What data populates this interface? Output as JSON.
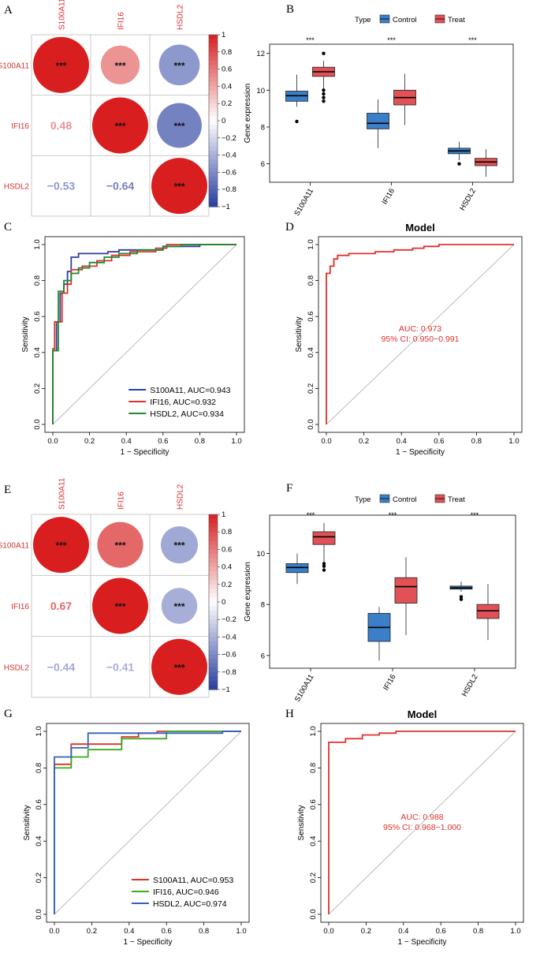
{
  "chart_data": [
    {
      "panel": "A",
      "type": "heatmap",
      "genes": [
        "S100A11",
        "IFI16",
        "HSDL2"
      ],
      "correlations": [
        [
          1,
          0.48,
          -0.53
        ],
        [
          0.48,
          1,
          -0.64
        ],
        [
          -0.53,
          -0.64,
          1
        ]
      ],
      "coef_labels": {
        "1_0": "0.48",
        "2_0": "−0.53",
        "2_1": "−0.64"
      },
      "significance": "***",
      "colorbar_ticks": [
        "1",
        "0.8",
        "0.6",
        "0.4",
        "0.2",
        "0",
        "−0.2",
        "−0.4",
        "−0.6",
        "−0.8",
        "−1"
      ],
      "colorbar_range": [
        -1,
        1
      ]
    },
    {
      "panel": "B",
      "type": "box",
      "legend_title": "Type",
      "legend": [
        "Control",
        "Treat"
      ],
      "colors": {
        "Control": "#3a7fc8",
        "Treat": "#e05256"
      },
      "ylabel": "Gene expression",
      "ylim": [
        5,
        12.5
      ],
      "yticks": [
        6,
        8,
        10,
        12
      ],
      "categories": [
        "S100A11",
        "IFI16",
        "HSDL2"
      ],
      "significance": [
        "***",
        "***",
        "***"
      ],
      "series": [
        {
          "name": "Control",
          "boxes": [
            {
              "low": 9.1,
              "q1": 9.4,
              "median": 9.7,
              "q3": 9.95,
              "high": 10.85,
              "outliers": [
                8.3
              ]
            },
            {
              "low": 6.85,
              "q1": 7.9,
              "median": 8.2,
              "q3": 8.75,
              "high": 9.5,
              "outliers": []
            },
            {
              "low": 6.2,
              "q1": 6.55,
              "median": 6.7,
              "q3": 6.85,
              "high": 7.2,
              "outliers": [
                6.0
              ]
            }
          ]
        },
        {
          "name": "Treat",
          "boxes": [
            {
              "low": 10.0,
              "q1": 10.75,
              "median": 11.0,
              "q3": 11.25,
              "high": 11.6,
              "outliers": [
                9.4,
                9.6,
                9.8,
                10.0,
                12.0
              ]
            },
            {
              "low": 8.1,
              "q1": 9.2,
              "median": 9.6,
              "q3": 10.0,
              "high": 10.9,
              "outliers": []
            },
            {
              "low": 5.3,
              "q1": 5.9,
              "median": 6.1,
              "q3": 6.3,
              "high": 6.8,
              "outliers": []
            }
          ]
        }
      ]
    },
    {
      "panel": "C",
      "type": "line",
      "xlabel": "1 − Specificity",
      "ylabel": "Sensitivity",
      "xlim": [
        0,
        1
      ],
      "ylim": [
        0,
        1
      ],
      "ticks": [
        "0.0",
        "0.2",
        "0.4",
        "0.6",
        "0.8",
        "1.0"
      ],
      "series": [
        {
          "name": "S100A11",
          "label": "S100A11, AUC=0.943",
          "color": "#2e3f9e",
          "points": [
            [
              0,
              0
            ],
            [
              0,
              0.41
            ],
            [
              0.02,
              0.41
            ],
            [
              0.02,
              0.57
            ],
            [
              0.04,
              0.57
            ],
            [
              0.04,
              0.73
            ],
            [
              0.06,
              0.73
            ],
            [
              0.06,
              0.78
            ],
            [
              0.08,
              0.78
            ],
            [
              0.08,
              0.85
            ],
            [
              0.1,
              0.85
            ],
            [
              0.1,
              0.93
            ],
            [
              0.14,
              0.93
            ],
            [
              0.14,
              0.95
            ],
            [
              0.3,
              0.95
            ],
            [
              0.3,
              0.96
            ],
            [
              0.36,
              0.96
            ],
            [
              0.36,
              0.97
            ],
            [
              0.6,
              0.97
            ],
            [
              0.6,
              0.99
            ],
            [
              0.8,
              0.99
            ],
            [
              0.8,
              1
            ],
            [
              1,
              1
            ]
          ]
        },
        {
          "name": "IFI16",
          "label": "IFI16, AUC=0.932",
          "color": "#e0302c",
          "points": [
            [
              0,
              0
            ],
            [
              0,
              0.42
            ],
            [
              0.01,
              0.42
            ],
            [
              0.01,
              0.57
            ],
            [
              0.05,
              0.57
            ],
            [
              0.05,
              0.73
            ],
            [
              0.08,
              0.73
            ],
            [
              0.08,
              0.78
            ],
            [
              0.1,
              0.78
            ],
            [
              0.1,
              0.86
            ],
            [
              0.16,
              0.86
            ],
            [
              0.16,
              0.88
            ],
            [
              0.24,
              0.88
            ],
            [
              0.24,
              0.91
            ],
            [
              0.32,
              0.91
            ],
            [
              0.32,
              0.94
            ],
            [
              0.42,
              0.94
            ],
            [
              0.42,
              0.96
            ],
            [
              0.56,
              0.96
            ],
            [
              0.56,
              0.98
            ],
            [
              0.62,
              0.98
            ],
            [
              0.62,
              1
            ],
            [
              1,
              1
            ]
          ]
        },
        {
          "name": "HSDL2",
          "label": "HSDL2, AUC=0.934",
          "color": "#1c8a2e",
          "points": [
            [
              0,
              0
            ],
            [
              0,
              0.41
            ],
            [
              0.03,
              0.41
            ],
            [
              0.03,
              0.74
            ],
            [
              0.06,
              0.74
            ],
            [
              0.06,
              0.8
            ],
            [
              0.1,
              0.8
            ],
            [
              0.1,
              0.84
            ],
            [
              0.14,
              0.84
            ],
            [
              0.14,
              0.87
            ],
            [
              0.2,
              0.87
            ],
            [
              0.2,
              0.9
            ],
            [
              0.28,
              0.9
            ],
            [
              0.28,
              0.93
            ],
            [
              0.36,
              0.93
            ],
            [
              0.36,
              0.95
            ],
            [
              0.46,
              0.95
            ],
            [
              0.46,
              0.97
            ],
            [
              0.6,
              0.97
            ],
            [
              0.6,
              0.99
            ],
            [
              0.7,
              0.99
            ],
            [
              0.7,
              1
            ],
            [
              1,
              1
            ]
          ]
        }
      ]
    },
    {
      "panel": "D",
      "type": "line",
      "title": "Model",
      "xlabel": "1 − Specificity",
      "ylabel": "Sensitivity",
      "xlim": [
        0,
        1
      ],
      "ylim": [
        0,
        1
      ],
      "ticks": [
        "0.0",
        "0.2",
        "0.4",
        "0.6",
        "0.8",
        "1.0"
      ],
      "auc": "AUC: 0.973",
      "ci": "95% CI: 0.950−0.991",
      "series": [
        {
          "name": "Model",
          "color": "#e0302c",
          "points": [
            [
              0,
              0
            ],
            [
              0,
              0.84
            ],
            [
              0.02,
              0.84
            ],
            [
              0.02,
              0.88
            ],
            [
              0.04,
              0.88
            ],
            [
              0.04,
              0.92
            ],
            [
              0.06,
              0.92
            ],
            [
              0.06,
              0.94
            ],
            [
              0.12,
              0.94
            ],
            [
              0.12,
              0.95
            ],
            [
              0.26,
              0.95
            ],
            [
              0.26,
              0.96
            ],
            [
              0.36,
              0.96
            ],
            [
              0.36,
              0.97
            ],
            [
              0.46,
              0.97
            ],
            [
              0.46,
              0.98
            ],
            [
              0.52,
              0.98
            ],
            [
              0.52,
              0.99
            ],
            [
              0.6,
              0.99
            ],
            [
              0.6,
              1
            ],
            [
              1,
              1
            ]
          ]
        }
      ]
    },
    {
      "panel": "E",
      "type": "heatmap",
      "genes": [
        "S100A11",
        "IFI16",
        "HSDL2"
      ],
      "correlations": [
        [
          1,
          0.67,
          -0.44
        ],
        [
          0.67,
          1,
          -0.41
        ],
        [
          -0.44,
          -0.41,
          1
        ]
      ],
      "coef_labels": {
        "1_0": "0.67",
        "2_0": "−0.44",
        "2_1": "−0.41"
      },
      "significance": "***",
      "colorbar_ticks": [
        "1",
        "0.8",
        "0.6",
        "0.4",
        "0.2",
        "0",
        "−0.2",
        "−0.4",
        "−0.6",
        "−0.8",
        "−1"
      ],
      "colorbar_range": [
        -1,
        1
      ]
    },
    {
      "panel": "F",
      "type": "box",
      "legend_title": "Type",
      "legend": [
        "Control",
        "Treat"
      ],
      "colors": {
        "Control": "#3a7fc8",
        "Treat": "#e05256"
      },
      "ylabel": "Gene expression",
      "ylim": [
        5.5,
        11.5
      ],
      "yticks": [
        6,
        8,
        10
      ],
      "categories": [
        "S100A11",
        "IFI16",
        "HSDL2"
      ],
      "significance": [
        "***",
        "***",
        "***"
      ],
      "series": [
        {
          "name": "Control",
          "boxes": [
            {
              "low": 8.8,
              "q1": 9.25,
              "median": 9.45,
              "q3": 9.6,
              "high": 10.0,
              "outliers": []
            },
            {
              "low": 5.8,
              "q1": 6.55,
              "median": 7.1,
              "q3": 7.65,
              "high": 7.9,
              "outliers": []
            },
            {
              "low": 8.5,
              "q1": 8.6,
              "median": 8.65,
              "q3": 8.72,
              "high": 8.9,
              "outliers": [
                8.2,
                8.3
              ]
            }
          ]
        },
        {
          "name": "Treat",
          "boxes": [
            {
              "low": 9.5,
              "q1": 10.35,
              "median": 10.65,
              "q3": 10.85,
              "high": 11.2,
              "outliers": [
                9.35,
                9.5,
                9.6
              ]
            },
            {
              "low": 6.8,
              "q1": 8.05,
              "median": 8.7,
              "q3": 9.05,
              "high": 9.85,
              "outliers": []
            },
            {
              "low": 6.6,
              "q1": 7.45,
              "median": 7.75,
              "q3": 8.0,
              "high": 8.8,
              "outliers": []
            }
          ]
        }
      ]
    },
    {
      "panel": "G",
      "type": "line",
      "xlabel": "1 − Specificity",
      "ylabel": "Sensitivity",
      "xlim": [
        0,
        1
      ],
      "ylim": [
        0,
        1
      ],
      "ticks": [
        "0.0",
        "0.2",
        "0.4",
        "0.6",
        "0.8",
        "1.0"
      ],
      "series": [
        {
          "name": "S100A11",
          "label": "S100A11, AUC=0.953",
          "color": "#e0302c",
          "points": [
            [
              0,
              0
            ],
            [
              0,
              0.82
            ],
            [
              0.09,
              0.82
            ],
            [
              0.09,
              0.93
            ],
            [
              0.36,
              0.93
            ],
            [
              0.36,
              0.97
            ],
            [
              0.45,
              0.97
            ],
            [
              0.45,
              0.99
            ],
            [
              0.55,
              0.99
            ],
            [
              0.55,
              1
            ],
            [
              1,
              1
            ]
          ]
        },
        {
          "name": "IFI16",
          "label": "IFI16, AUC=0.946",
          "color": "#3aaa1e",
          "points": [
            [
              0,
              0
            ],
            [
              0,
              0.8
            ],
            [
              0.09,
              0.8
            ],
            [
              0.09,
              0.86
            ],
            [
              0.18,
              0.86
            ],
            [
              0.18,
              0.9
            ],
            [
              0.36,
              0.9
            ],
            [
              0.36,
              0.96
            ],
            [
              0.6,
              0.96
            ],
            [
              0.6,
              1
            ],
            [
              1,
              1
            ]
          ]
        },
        {
          "name": "HSDL2",
          "label": "HSDL2, AUC=0.974",
          "color": "#3560b8",
          "points": [
            [
              0,
              0
            ],
            [
              0,
              0.86
            ],
            [
              0.09,
              0.86
            ],
            [
              0.09,
              0.91
            ],
            [
              0.18,
              0.91
            ],
            [
              0.18,
              0.99
            ],
            [
              0.9,
              0.99
            ],
            [
              0.9,
              1
            ],
            [
              1,
              1
            ]
          ]
        }
      ]
    },
    {
      "panel": "H",
      "type": "line",
      "title": "Model",
      "xlabel": "1 − Specificity",
      "ylabel": "Sensitivity",
      "xlim": [
        0,
        1
      ],
      "ylim": [
        0,
        1
      ],
      "ticks": [
        "0.0",
        "0.2",
        "0.4",
        "0.6",
        "0.8",
        "1.0"
      ],
      "auc": "AUC: 0.988",
      "ci": "95% CI: 0.968−1.000",
      "series": [
        {
          "name": "Model",
          "color": "#e0302c",
          "points": [
            [
              0,
              0
            ],
            [
              0,
              0.94
            ],
            [
              0.09,
              0.94
            ],
            [
              0.09,
              0.96
            ],
            [
              0.18,
              0.96
            ],
            [
              0.18,
              0.98
            ],
            [
              0.27,
              0.98
            ],
            [
              0.27,
              0.99
            ],
            [
              0.36,
              0.99
            ],
            [
              0.36,
              1
            ],
            [
              1,
              1
            ]
          ]
        }
      ]
    }
  ]
}
